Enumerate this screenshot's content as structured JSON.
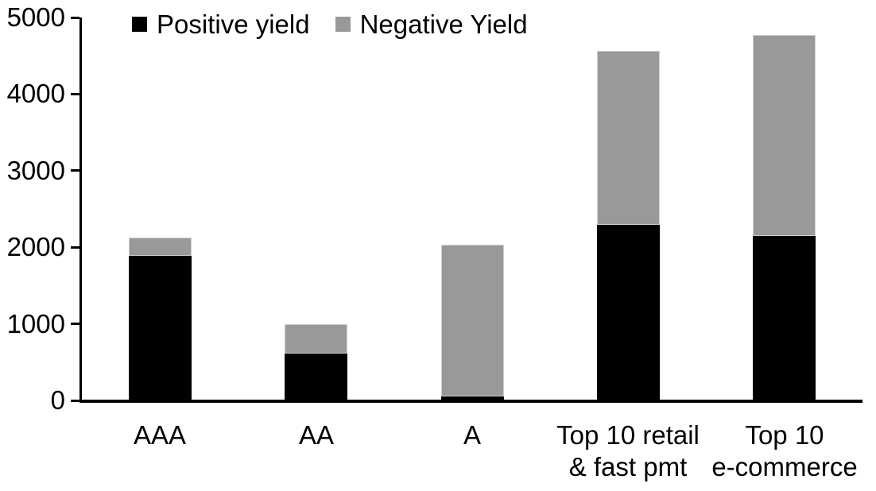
{
  "chart_data": {
    "type": "bar",
    "stacked": true,
    "title": "",
    "xlabel": "",
    "ylabel": "",
    "ylim": [
      0,
      5000
    ],
    "yticks": [
      0,
      1000,
      2000,
      3000,
      4000,
      5000
    ],
    "grid": false,
    "legend_position": "top-left-inside",
    "categories": [
      "AAA",
      "AA",
      "A",
      "Top 10 retail & fast pmt",
      "Top 10 e-commerce"
    ],
    "category_label_lines": [
      [
        "AAA"
      ],
      [
        "AA"
      ],
      [
        "A"
      ],
      [
        "Top 10 retail",
        "& fast pmt"
      ],
      [
        "Top 10",
        "e-commerce"
      ]
    ],
    "series": [
      {
        "name": "Positive yield",
        "color": "#000000",
        "values": [
          1890,
          620,
          50,
          2290,
          2150
        ]
      },
      {
        "name": "Negative Yield",
        "color": "#999999",
        "values": [
          240,
          380,
          1980,
          2270,
          2620
        ]
      }
    ]
  }
}
